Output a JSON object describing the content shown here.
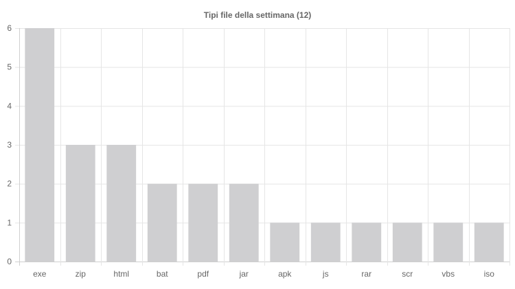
{
  "chart_data": {
    "type": "bar",
    "title": "Tipi file della settimana (12)",
    "xlabel": "",
    "ylabel": "",
    "categories": [
      "exe",
      "zip",
      "html",
      "bat",
      "pdf",
      "jar",
      "apk",
      "js",
      "rar",
      "scr",
      "vbs",
      "iso"
    ],
    "values": [
      6,
      3,
      3,
      2,
      2,
      2,
      1,
      1,
      1,
      1,
      1,
      1
    ],
    "ylim": [
      0,
      6
    ],
    "yticks": [
      0,
      1,
      2,
      3,
      4,
      5,
      6
    ],
    "grid": true,
    "legend": "none",
    "colors": {
      "bar": "#cfcfd1",
      "grid": "#e5e5e5",
      "text": "#666666"
    }
  }
}
